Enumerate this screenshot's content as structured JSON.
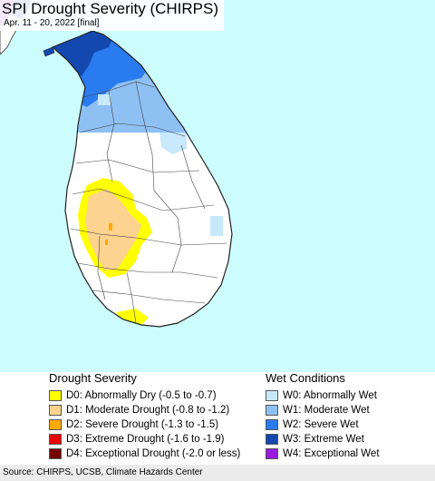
{
  "map": {
    "title": "SPI Drought Severity (CHIRPS)",
    "subtitle": "Apr. 11 - 20, 2022 [final]",
    "colors": {
      "ocean": "#cdfcfc",
      "land": "#ffffff",
      "border": "#333333",
      "D0": "#ffff00",
      "D1": "#fcd38f",
      "D2": "#ffaa00",
      "W0": "#c7e9fb",
      "W1": "#8ec0f4",
      "W2": "#2b7bf0",
      "W3": "#1348b0",
      "W4": "#9a1adf"
    }
  },
  "legend": {
    "drought_title": "Drought Severity",
    "drought_items": [
      {
        "label": "D0: Abnormally Dry (-0.5 to -0.7)",
        "color": "#ffff00"
      },
      {
        "label": "D1: Moderate Drought (-0.8 to -1.2)",
        "color": "#fcd38f"
      },
      {
        "label": "D2: Severe Drought (-1.3 to -1.5)",
        "color": "#ffaa00"
      },
      {
        "label": "D3: Extreme Drought (-1.6 to -1.9)",
        "color": "#e60000"
      },
      {
        "label": "D4: Exceptional Drought (-2.0 or less)",
        "color": "#730000"
      }
    ],
    "wet_title": "Wet Conditions",
    "wet_items": [
      {
        "label": "W0: Abnormally Wet",
        "color": "#c7e9fb"
      },
      {
        "label": "W1: Moderate Wet",
        "color": "#8ec0f4"
      },
      {
        "label": "W2: Severe Wet",
        "color": "#2b7bf0"
      },
      {
        "label": "W3: Extreme Wet",
        "color": "#1348b0"
      },
      {
        "label": "W4: Exceptional Wet",
        "color": "#9a1adf"
      }
    ]
  },
  "footer": {
    "source": "Source: CHIRPS, UCSB, Climate Hazards Center"
  }
}
